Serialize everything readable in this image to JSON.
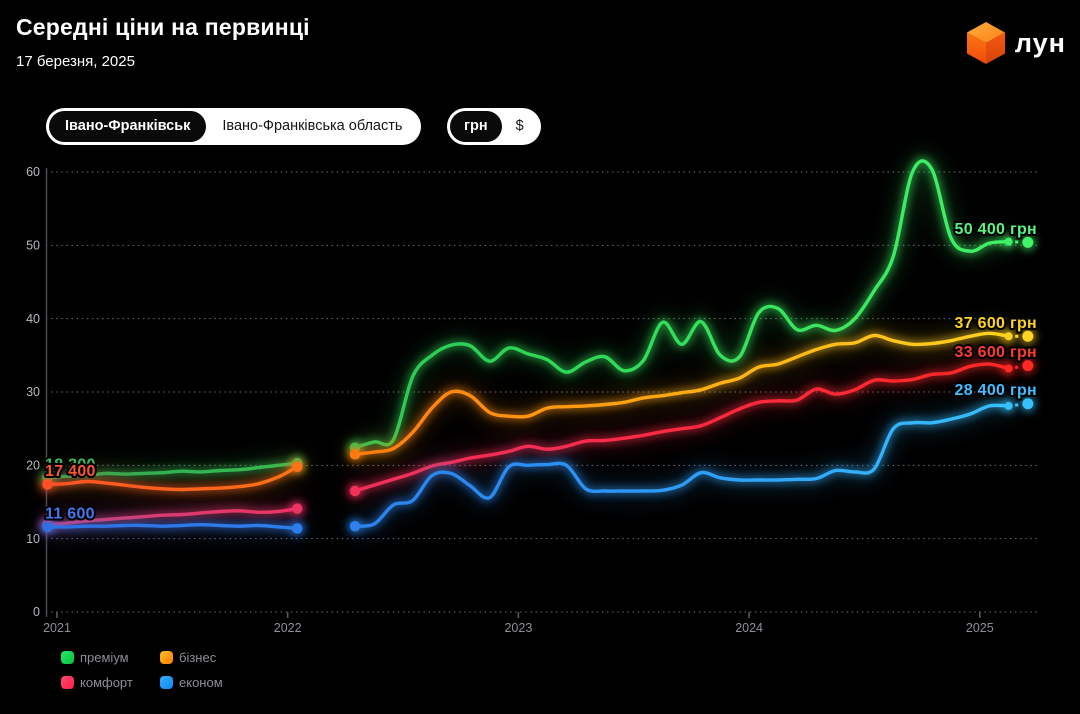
{
  "header": {
    "title": "Середні ціни на первинці",
    "date": "17 березня, 2025"
  },
  "logo": {
    "text": "лун",
    "cube_colors": {
      "top_from": "#ffb03a",
      "top_to": "#ff7d18",
      "left_from": "#ff7514",
      "left_to": "#ef4b0b",
      "right_from": "#f4590f",
      "right_to": "#d84309"
    }
  },
  "toggles": {
    "location": {
      "options": [
        {
          "label": "Івано-Франківськ",
          "selected": true
        },
        {
          "label": "Івано-Франківська область",
          "selected": false
        }
      ]
    },
    "currency": {
      "options": [
        {
          "label": "грн",
          "selected": true
        },
        {
          "label": "$",
          "selected": false
        }
      ]
    }
  },
  "legend": {
    "items": [
      {
        "label": "преміум",
        "color": "#23e95f",
        "color2": "#0cbf47"
      },
      {
        "label": "бізнес",
        "color": "#ffc226",
        "color2": "#ff7a00"
      },
      {
        "label": "комфорт",
        "color": "#ff4a70",
        "color2": "#fd1c48"
      },
      {
        "label": "економ",
        "color": "#35aeff",
        "color2": "#0d86f5"
      }
    ]
  },
  "chart_data": {
    "type": "line",
    "unit": "грн",
    "value_scale": "thousands",
    "x_ticks": [
      "2021",
      "2022",
      "2023",
      "2024",
      "2025"
    ],
    "y_ticks": [
      0,
      10,
      20,
      30,
      40,
      50,
      60
    ],
    "ylim": [
      0,
      60
    ],
    "x_range": [
      "2020-12",
      "2025-03"
    ],
    "grid": "dotted horizontal",
    "data_gap": [
      "2022-02",
      "2022-03"
    ],
    "series": [
      {
        "key": "premium",
        "name": "преміум",
        "gradient": [
          [
            "0",
            "#2aa954"
          ],
          [
            "0.5",
            "#2fd657"
          ],
          [
            "1",
            "#41f469"
          ]
        ],
        "start_label": {
          "text": "18 300",
          "color": "#36c162"
        },
        "end_label": {
          "text": "50 400 грн",
          "color": "#58f381"
        },
        "segments": [
          {
            "start": "2020-12",
            "values": [
              18.3,
              18.5,
              18.6,
              18.9,
              18.8,
              18.9,
              19.0,
              19.2,
              19.1,
              19.3,
              19.4,
              19.7,
              20.0,
              20.3
            ]
          },
          {
            "start": "2022-04",
            "values": [
              22.4,
              23.2,
              23.5,
              32.1,
              35.0,
              36.4,
              36.3,
              34.2,
              36.0,
              35.2,
              34.4,
              32.7,
              34.1,
              34.8,
              32.9,
              34.3,
              39.5,
              36.5,
              39.6,
              35.0,
              34.8,
              40.8,
              41.4,
              38.5,
              39.1,
              38.4,
              40.0,
              43.8,
              48.5,
              60.0,
              60.4,
              51.0,
              49.2,
              50.3,
              50.5
            ]
          }
        ],
        "projection": {
          "month": "2025-03",
          "value": 50.4
        }
      },
      {
        "key": "biznes",
        "name": "бізнес",
        "gradient": [
          [
            "0",
            "#ff5026"
          ],
          [
            "0.35",
            "#ff800d"
          ],
          [
            "0.7",
            "#ffb315"
          ],
          [
            "1",
            "#ffd520"
          ]
        ],
        "start_label": {
          "text": "17 400",
          "color": "#ff5533"
        },
        "end_label": {
          "text": "37 600 грн",
          "color": "#ffd520"
        },
        "segments": [
          {
            "start": "2020-12",
            "values": [
              17.4,
              17.5,
              17.8,
              17.6,
              17.3,
              17.0,
              16.8,
              16.7,
              16.8,
              16.9,
              17.1,
              17.5,
              18.4,
              19.8
            ]
          },
          {
            "start": "2022-04",
            "values": [
              21.5,
              21.8,
              22.3,
              24.5,
              27.8,
              30.0,
              29.5,
              27.2,
              26.7,
              26.7,
              27.8,
              28.0,
              28.1,
              28.3,
              28.6,
              29.2,
              29.5,
              29.9,
              30.3,
              31.2,
              31.9,
              33.4,
              33.8,
              34.8,
              35.8,
              36.5,
              36.7,
              37.7,
              37.0,
              36.5,
              36.6,
              37.0,
              37.6,
              38.0,
              37.6
            ]
          }
        ],
        "projection": {
          "month": "2025-03",
          "value": 37.6
        }
      },
      {
        "key": "komfort",
        "name": "комфорт",
        "gradient": [
          [
            "0",
            "#e73a6e"
          ],
          [
            "0.5",
            "#fa2a4f"
          ],
          [
            "1",
            "#ff2822"
          ]
        ],
        "start_label": null,
        "end_label": {
          "text": "33 600 грн",
          "color": "#ff3b2d"
        },
        "segments": [
          {
            "start": "2020-12",
            "values": [
              11.9,
              12.1,
              12.4,
              12.6,
              12.8,
              13.0,
              13.2,
              13.3,
              13.5,
              13.7,
              13.8,
              13.6,
              13.7,
              14.1
            ]
          },
          {
            "start": "2022-04",
            "values": [
              16.5,
              17.3,
              18.1,
              18.9,
              19.9,
              20.4,
              21.0,
              21.4,
              21.9,
              22.6,
              22.2,
              22.6,
              23.3,
              23.4,
              23.7,
              24.1,
              24.6,
              25.0,
              25.4,
              26.5,
              27.7,
              28.6,
              28.8,
              28.9,
              30.4,
              29.7,
              30.3,
              31.6,
              31.5,
              31.7,
              32.4,
              32.6,
              33.5,
              33.8,
              33.2
            ]
          }
        ],
        "projection": {
          "month": "2025-03",
          "value": 33.6
        }
      },
      {
        "key": "ekonom",
        "name": "економ",
        "gradient": [
          [
            "0",
            "#2f6fe4"
          ],
          [
            "0.5",
            "#2b8df2"
          ],
          [
            "1",
            "#38c2ff"
          ]
        ],
        "start_label": {
          "text": "11 600",
          "color": "#4577f0"
        },
        "end_label": {
          "text": "28 400 грн",
          "color": "#42bdff"
        },
        "segments": [
          {
            "start": "2020-12",
            "values": [
              11.6,
              11.6,
              11.7,
              11.7,
              11.8,
              11.8,
              11.7,
              11.8,
              11.9,
              11.8,
              11.7,
              11.8,
              11.6,
              11.4
            ]
          },
          {
            "start": "2022-04",
            "values": [
              11.7,
              12.0,
              14.6,
              15.2,
              18.6,
              18.9,
              17.2,
              15.6,
              19.8,
              20.0,
              20.1,
              20.0,
              16.8,
              16.5,
              16.5,
              16.5,
              16.6,
              17.3,
              19.0,
              18.3,
              18.0,
              18.0,
              18.0,
              18.1,
              18.2,
              19.3,
              19.1,
              19.5,
              25.0,
              25.8,
              25.8,
              26.3,
              27.0,
              28.1,
              28.1
            ]
          }
        ],
        "projection": {
          "month": "2025-03",
          "value": 28.4
        }
      }
    ]
  }
}
